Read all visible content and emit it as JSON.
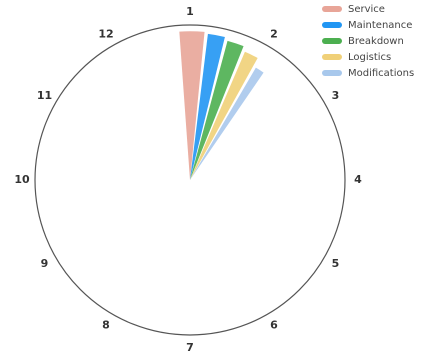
{
  "chart_data": {
    "type": "polar_bar",
    "theta_start": 0.84,
    "xlim": [
      1,
      13
    ],
    "xticks": [
      1,
      2,
      3,
      4,
      5,
      6,
      7,
      8,
      9,
      10,
      11,
      12
    ],
    "rlim": [
      0,
      1
    ],
    "legend": "top-right",
    "series": [
      {
        "name": "Service",
        "color": "#e8a598",
        "values": [
          0.37
        ],
        "r": [
          0.96
        ]
      },
      {
        "name": "Maintenance",
        "color": "#2196f3",
        "values": [
          0.27
        ],
        "r": [
          0.95
        ]
      },
      {
        "name": "Breakdown",
        "color": "#4caf50",
        "values": [
          0.27
        ],
        "r": [
          0.93
        ]
      },
      {
        "name": "Logistics",
        "color": "#f0d078",
        "values": [
          0.24
        ],
        "r": [
          0.9
        ]
      },
      {
        "name": "Modifications",
        "color": "#a8c8ec",
        "values": [
          0.18
        ],
        "r": [
          0.84
        ]
      }
    ]
  }
}
